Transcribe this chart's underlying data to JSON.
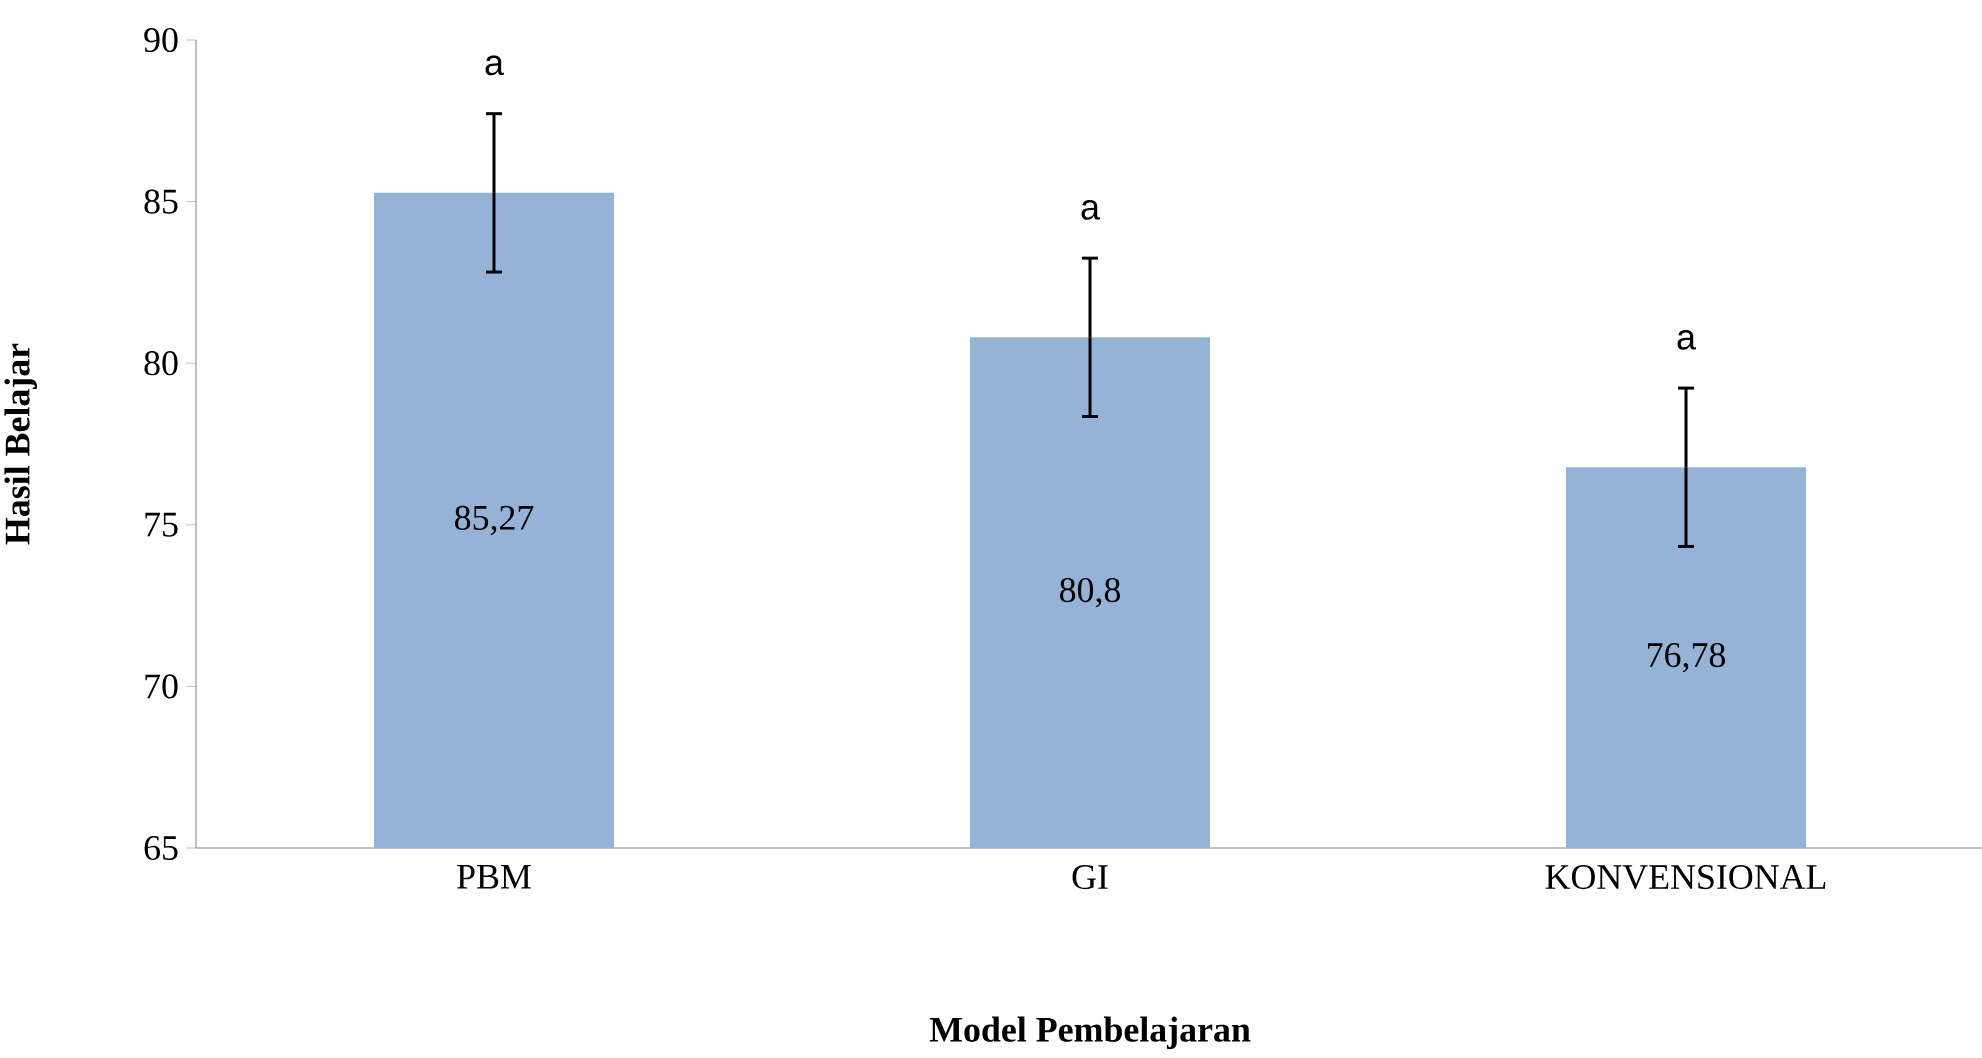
{
  "chart_data": {
    "type": "bar",
    "xlabel": "Model Pembelajaran",
    "ylabel": "Hasil Belajar",
    "categories": [
      "PBM",
      "GI",
      "KONVENSIONAL"
    ],
    "values": [
      85.27,
      80.8,
      76.78
    ],
    "value_labels": [
      "85,27",
      "80,8",
      "76,78"
    ],
    "errors": [
      2.45,
      2.45,
      2.45
    ],
    "color": "#95b3d7",
    "ylim": [
      65,
      90
    ],
    "yticks": [
      65,
      70,
      75,
      80,
      85,
      90
    ],
    "grid": false,
    "annotations": [
      "a",
      "a",
      "a"
    ]
  }
}
